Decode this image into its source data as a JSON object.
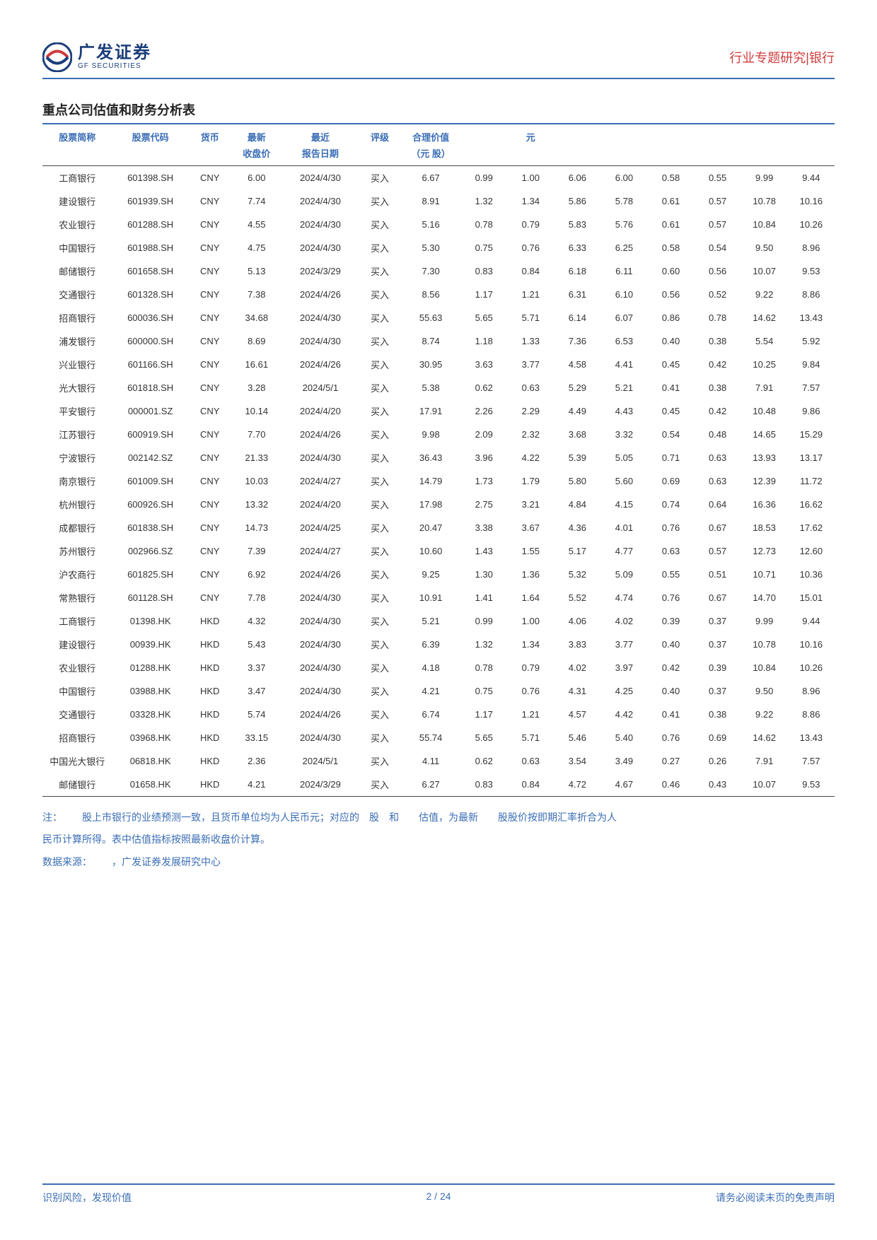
{
  "header": {
    "logo_cn": "广发证券",
    "logo_en": "GF SECURITIES",
    "doc_type": "行业专题研究|银行"
  },
  "colors": {
    "brand_blue": "#3a6db5",
    "brand_red": "#d13c3c",
    "text": "#333333",
    "logo_dark": "#1b3e7a"
  },
  "section_title": "重点公司估值和财务分析表",
  "table": {
    "headers_top": [
      "股票简称",
      "股票代码",
      "货币",
      "最新",
      "最近",
      "评级",
      "合理价值",
      "",
      "元",
      "",
      "",
      "",
      "",
      "",
      ""
    ],
    "headers_sub": [
      "",
      "",
      "",
      "收盘价",
      "报告日期",
      "",
      "（元 股）",
      "",
      "",
      "",
      "",
      "",
      "",
      "",
      ""
    ],
    "rows": [
      [
        "工商银行",
        "601398.SH",
        "CNY",
        "6.00",
        "2024/4/30",
        "买入",
        "6.67",
        "0.99",
        "1.00",
        "6.06",
        "6.00",
        "0.58",
        "0.55",
        "9.99",
        "9.44"
      ],
      [
        "建设银行",
        "601939.SH",
        "CNY",
        "7.74",
        "2024/4/30",
        "买入",
        "8.91",
        "1.32",
        "1.34",
        "5.86",
        "5.78",
        "0.61",
        "0.57",
        "10.78",
        "10.16"
      ],
      [
        "农业银行",
        "601288.SH",
        "CNY",
        "4.55",
        "2024/4/30",
        "买入",
        "5.16",
        "0.78",
        "0.79",
        "5.83",
        "5.76",
        "0.61",
        "0.57",
        "10.84",
        "10.26"
      ],
      [
        "中国银行",
        "601988.SH",
        "CNY",
        "4.75",
        "2024/4/30",
        "买入",
        "5.30",
        "0.75",
        "0.76",
        "6.33",
        "6.25",
        "0.58",
        "0.54",
        "9.50",
        "8.96"
      ],
      [
        "邮储银行",
        "601658.SH",
        "CNY",
        "5.13",
        "2024/3/29",
        "买入",
        "7.30",
        "0.83",
        "0.84",
        "6.18",
        "6.11",
        "0.60",
        "0.56",
        "10.07",
        "9.53"
      ],
      [
        "交通银行",
        "601328.SH",
        "CNY",
        "7.38",
        "2024/4/26",
        "买入",
        "8.56",
        "1.17",
        "1.21",
        "6.31",
        "6.10",
        "0.56",
        "0.52",
        "9.22",
        "8.86"
      ],
      [
        "招商银行",
        "600036.SH",
        "CNY",
        "34.68",
        "2024/4/30",
        "买入",
        "55.63",
        "5.65",
        "5.71",
        "6.14",
        "6.07",
        "0.86",
        "0.78",
        "14.62",
        "13.43"
      ],
      [
        "浦发银行",
        "600000.SH",
        "CNY",
        "8.69",
        "2024/4/30",
        "买入",
        "8.74",
        "1.18",
        "1.33",
        "7.36",
        "6.53",
        "0.40",
        "0.38",
        "5.54",
        "5.92"
      ],
      [
        "兴业银行",
        "601166.SH",
        "CNY",
        "16.61",
        "2024/4/26",
        "买入",
        "30.95",
        "3.63",
        "3.77",
        "4.58",
        "4.41",
        "0.45",
        "0.42",
        "10.25",
        "9.84"
      ],
      [
        "光大银行",
        "601818.SH",
        "CNY",
        "3.28",
        "2024/5/1",
        "买入",
        "5.38",
        "0.62",
        "0.63",
        "5.29",
        "5.21",
        "0.41",
        "0.38",
        "7.91",
        "7.57"
      ],
      [
        "平安银行",
        "000001.SZ",
        "CNY",
        "10.14",
        "2024/4/20",
        "买入",
        "17.91",
        "2.26",
        "2.29",
        "4.49",
        "4.43",
        "0.45",
        "0.42",
        "10.48",
        "9.86"
      ],
      [
        "江苏银行",
        "600919.SH",
        "CNY",
        "7.70",
        "2024/4/26",
        "买入",
        "9.98",
        "2.09",
        "2.32",
        "3.68",
        "3.32",
        "0.54",
        "0.48",
        "14.65",
        "15.29"
      ],
      [
        "宁波银行",
        "002142.SZ",
        "CNY",
        "21.33",
        "2024/4/30",
        "买入",
        "36.43",
        "3.96",
        "4.22",
        "5.39",
        "5.05",
        "0.71",
        "0.63",
        "13.93",
        "13.17"
      ],
      [
        "南京银行",
        "601009.SH",
        "CNY",
        "10.03",
        "2024/4/27",
        "买入",
        "14.79",
        "1.73",
        "1.79",
        "5.80",
        "5.60",
        "0.69",
        "0.63",
        "12.39",
        "11.72"
      ],
      [
        "杭州银行",
        "600926.SH",
        "CNY",
        "13.32",
        "2024/4/20",
        "买入",
        "17.98",
        "2.75",
        "3.21",
        "4.84",
        "4.15",
        "0.74",
        "0.64",
        "16.36",
        "16.62"
      ],
      [
        "成都银行",
        "601838.SH",
        "CNY",
        "14.73",
        "2024/4/25",
        "买入",
        "20.47",
        "3.38",
        "3.67",
        "4.36",
        "4.01",
        "0.76",
        "0.67",
        "18.53",
        "17.62"
      ],
      [
        "苏州银行",
        "002966.SZ",
        "CNY",
        "7.39",
        "2024/4/27",
        "买入",
        "10.60",
        "1.43",
        "1.55",
        "5.17",
        "4.77",
        "0.63",
        "0.57",
        "12.73",
        "12.60"
      ],
      [
        "沪农商行",
        "601825.SH",
        "CNY",
        "6.92",
        "2024/4/26",
        "买入",
        "9.25",
        "1.30",
        "1.36",
        "5.32",
        "5.09",
        "0.55",
        "0.51",
        "10.71",
        "10.36"
      ],
      [
        "常熟银行",
        "601128.SH",
        "CNY",
        "7.78",
        "2024/4/30",
        "买入",
        "10.91",
        "1.41",
        "1.64",
        "5.52",
        "4.74",
        "0.76",
        "0.67",
        "14.70",
        "15.01"
      ],
      [
        "工商银行",
        "01398.HK",
        "HKD",
        "4.32",
        "2024/4/30",
        "买入",
        "5.21",
        "0.99",
        "1.00",
        "4.06",
        "4.02",
        "0.39",
        "0.37",
        "9.99",
        "9.44"
      ],
      [
        "建设银行",
        "00939.HK",
        "HKD",
        "5.43",
        "2024/4/30",
        "买入",
        "6.39",
        "1.32",
        "1.34",
        "3.83",
        "3.77",
        "0.40",
        "0.37",
        "10.78",
        "10.16"
      ],
      [
        "农业银行",
        "01288.HK",
        "HKD",
        "3.37",
        "2024/4/30",
        "买入",
        "4.18",
        "0.78",
        "0.79",
        "4.02",
        "3.97",
        "0.42",
        "0.39",
        "10.84",
        "10.26"
      ],
      [
        "中国银行",
        "03988.HK",
        "HKD",
        "3.47",
        "2024/4/30",
        "买入",
        "4.21",
        "0.75",
        "0.76",
        "4.31",
        "4.25",
        "0.40",
        "0.37",
        "9.50",
        "8.96"
      ],
      [
        "交通银行",
        "03328.HK",
        "HKD",
        "5.74",
        "2024/4/26",
        "买入",
        "6.74",
        "1.17",
        "1.21",
        "4.57",
        "4.42",
        "0.41",
        "0.38",
        "9.22",
        "8.86"
      ],
      [
        "招商银行",
        "03968.HK",
        "HKD",
        "33.15",
        "2024/4/30",
        "买入",
        "55.74",
        "5.65",
        "5.71",
        "5.46",
        "5.40",
        "0.76",
        "0.69",
        "14.62",
        "13.43"
      ],
      [
        "中国光大银行",
        "06818.HK",
        "HKD",
        "2.36",
        "2024/5/1",
        "买入",
        "4.11",
        "0.62",
        "0.63",
        "3.54",
        "3.49",
        "0.27",
        "0.26",
        "7.91",
        "7.57"
      ],
      [
        "邮储银行",
        "01658.HK",
        "HKD",
        "4.21",
        "2024/3/29",
        "买入",
        "6.27",
        "0.83",
        "0.84",
        "4.72",
        "4.67",
        "0.46",
        "0.43",
        "10.07",
        "9.53"
      ]
    ]
  },
  "note_line1": "注：  股上市银行的业绩预测一致，且货币单位均为人民币元；对应的 股 和  估值，为最新  股股价按即期汇率折合为人",
  "note_line2": "民币计算所得。表中估值指标按照最新收盘价计算。",
  "source": "数据来源：  ，广发证券发展研究中心",
  "footer": {
    "left": "识别风险，发现价值",
    "center": "2 / 24",
    "right": "请务必阅读末页的免责声明"
  }
}
